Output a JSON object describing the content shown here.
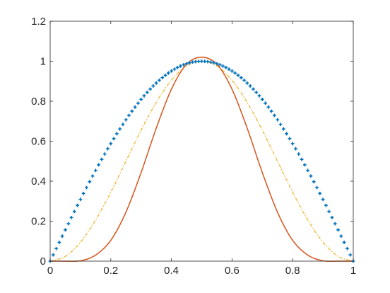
{
  "chart_data": {
    "type": "line",
    "title": "",
    "xlabel": "",
    "ylabel": "",
    "xlim": [
      0,
      1
    ],
    "ylim": [
      0,
      1.2
    ],
    "x_ticks": [
      0,
      0.2,
      0.4,
      0.6,
      0.8,
      1
    ],
    "x_tick_labels": [
      "0",
      "0.2",
      "0.4",
      "0.6",
      "0.8",
      "1"
    ],
    "y_ticks": [
      0,
      0.2,
      0.4,
      0.6,
      0.8,
      1,
      1.2
    ],
    "y_tick_labels": [
      "0",
      "0.2",
      "0.4",
      "0.6",
      "0.8",
      "1",
      "1.2"
    ],
    "grid": false,
    "legend": "none",
    "x": [
      0,
      0.05,
      0.1,
      0.15,
      0.2,
      0.25,
      0.3,
      0.35,
      0.4,
      0.45,
      0.5,
      0.55,
      0.6,
      0.65,
      0.7,
      0.75,
      0.8,
      0.85,
      0.9,
      0.95,
      1
    ],
    "series": [
      {
        "style": "markers-plus",
        "color": "#0072BD",
        "values": [
          0,
          0.156,
          0.309,
          0.454,
          0.588,
          0.707,
          0.809,
          0.891,
          0.951,
          0.988,
          1,
          0.988,
          0.951,
          0.891,
          0.809,
          0.707,
          0.588,
          0.454,
          0.309,
          0.156,
          0
        ]
      },
      {
        "style": "dash-dot",
        "color": "#EDB120",
        "values": [
          0,
          0.024,
          0.095,
          0.206,
          0.345,
          0.5,
          0.655,
          0.794,
          0.905,
          0.976,
          1,
          0.976,
          0.905,
          0.794,
          0.655,
          0.5,
          0.345,
          0.206,
          0.095,
          0.024,
          0
        ]
      },
      {
        "style": "solid",
        "color": "#D95319",
        "values": [
          0,
          0,
          0.002,
          0.03,
          0.104,
          0.245,
          0.443,
          0.665,
          0.86,
          0.985,
          1.02,
          0.985,
          0.86,
          0.665,
          0.443,
          0.245,
          0.104,
          0.03,
          0.002,
          0,
          0
        ]
      }
    ]
  }
}
